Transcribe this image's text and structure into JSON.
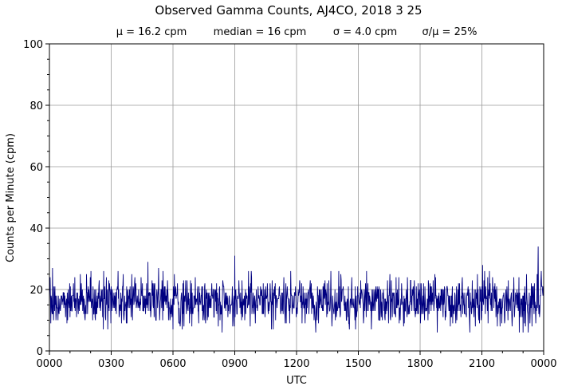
{
  "chart_data": {
    "type": "line",
    "title": "Observed Gamma Counts, AJ4CO, 2018 3 25",
    "subtitle_items": [
      "μ = 16.2 cpm",
      "median = 16 cpm",
      "σ = 4.0 cpm",
      "σ/μ = 25%"
    ],
    "xlabel": "UTC",
    "ylabel": "Counts per Minute (cpm)",
    "xlim": [
      0,
      1440
    ],
    "ylim": [
      0,
      100
    ],
    "grid": true,
    "xticks": [
      {
        "minute": 0,
        "label": "0000"
      },
      {
        "minute": 180,
        "label": "0300"
      },
      {
        "minute": 360,
        "label": "0600"
      },
      {
        "minute": 540,
        "label": "0900"
      },
      {
        "minute": 720,
        "label": "1200"
      },
      {
        "minute": 900,
        "label": "1500"
      },
      {
        "minute": 1080,
        "label": "1800"
      },
      {
        "minute": 1260,
        "label": "2100"
      },
      {
        "minute": 1440,
        "label": "0000"
      }
    ],
    "yticks": [
      0,
      20,
      40,
      60,
      80,
      100
    ],
    "series": [
      {
        "color": "#000080",
        "mean": 16.2,
        "std": 4.0,
        "points": 1440,
        "peaks": [
          {
            "minute": 9,
            "value": 27
          },
          {
            "minute": 287,
            "value": 29
          },
          {
            "minute": 318,
            "value": 27
          },
          {
            "minute": 540,
            "value": 31
          },
          {
            "minute": 1262,
            "value": 28
          },
          {
            "minute": 1424,
            "value": 34
          }
        ],
        "dips": [
          {
            "minute": 4,
            "value": 9
          },
          {
            "minute": 157,
            "value": 7
          },
          {
            "minute": 360,
            "value": 7
          },
          {
            "minute": 892,
            "value": 7
          },
          {
            "minute": 1380,
            "value": 6
          }
        ]
      }
    ]
  }
}
